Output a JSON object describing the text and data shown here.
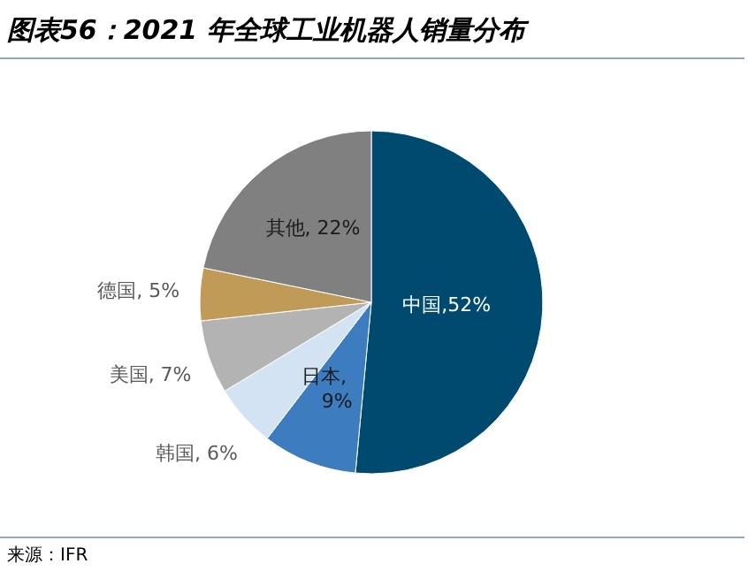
{
  "chart_data": {
    "type": "pie",
    "title": "图表56：2021 年全球工业机器人销量分布",
    "categories": [
      "中国",
      "日本",
      "韩国",
      "美国",
      "德国",
      "其他"
    ],
    "values": [
      52,
      9,
      6,
      7,
      5,
      22
    ],
    "colors": [
      "#004a6f",
      "#3d7dbf",
      "#d3e3f3",
      "#b3b3b3",
      "#bf9b57",
      "#808080"
    ],
    "value_labels": [
      ",52%",
      ",\n9%",
      ", 6%",
      ", 7%",
      ", 5%",
      ", 22%"
    ],
    "annotations": [
      "来源：IFR"
    ]
  }
}
